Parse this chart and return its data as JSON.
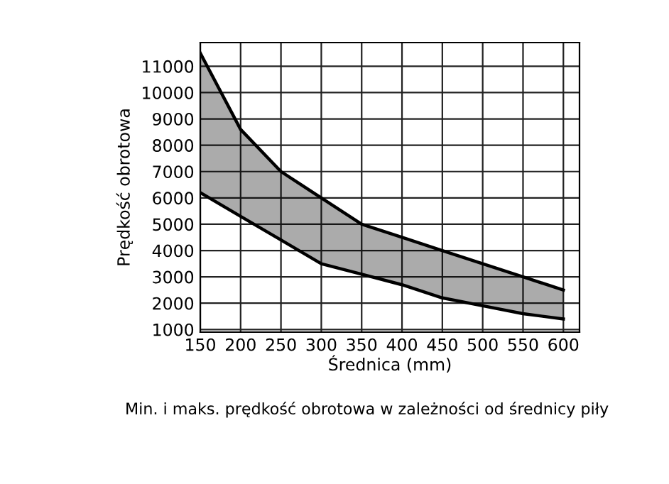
{
  "chart_data": {
    "type": "line",
    "xlabel": "Średnica (mm)",
    "ylabel": "Prędkość obrotowa",
    "annotations": [
      "Min. i maks. prędkość obrotowa w zależności od średnicy piły"
    ],
    "x": [
      150,
      200,
      250,
      300,
      350,
      400,
      450,
      500,
      550,
      600
    ],
    "series": [
      {
        "color": "#000000",
        "values": [
          6200,
          5300,
          4400,
          3500,
          3100,
          2700,
          2200,
          1900,
          1600,
          1400
        ]
      },
      {
        "color": "#000000",
        "values": [
          11500,
          8600,
          7000,
          6000,
          5000,
          4500,
          4000,
          3500,
          3000,
          2500
        ],
        "lower": [
          6200,
          5300,
          4400,
          3500,
          3100,
          2700,
          2200,
          1900,
          1600,
          1400
        ],
        "upper": [
          11500,
          8600,
          7000,
          6000,
          5000,
          4500,
          4000,
          3500,
          3000,
          2500
        ]
      }
    ],
    "xlim": [
      150,
      620
    ],
    "xticks": [
      150,
      200,
      250,
      300,
      350,
      400,
      450,
      500,
      550,
      600
    ],
    "ylim": [
      900,
      11900
    ],
    "yticks": [
      1000,
      2000,
      3000,
      4000,
      5000,
      6000,
      7000,
      8000,
      9000,
      10000,
      11000
    ],
    "grid": true,
    "legend": false
  }
}
